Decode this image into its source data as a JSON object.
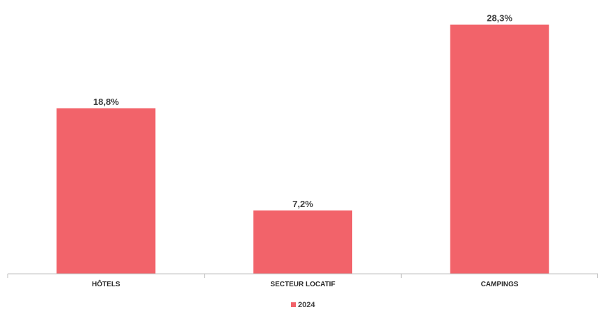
{
  "chart_data": {
    "type": "bar",
    "categories": [
      "HÔTELS",
      "SECTEUR LOCATIF",
      "CAMPINGS"
    ],
    "series": [
      {
        "name": "2024",
        "values": [
          18.8,
          7.2,
          28.3
        ],
        "labels": [
          "18,8%",
          "7,2%",
          "28,3%"
        ],
        "color": "#F2636A"
      }
    ],
    "ylim": [
      0,
      30
    ],
    "grid": false,
    "legend": "bottom-center",
    "axis_color": "#BFBFBF"
  }
}
